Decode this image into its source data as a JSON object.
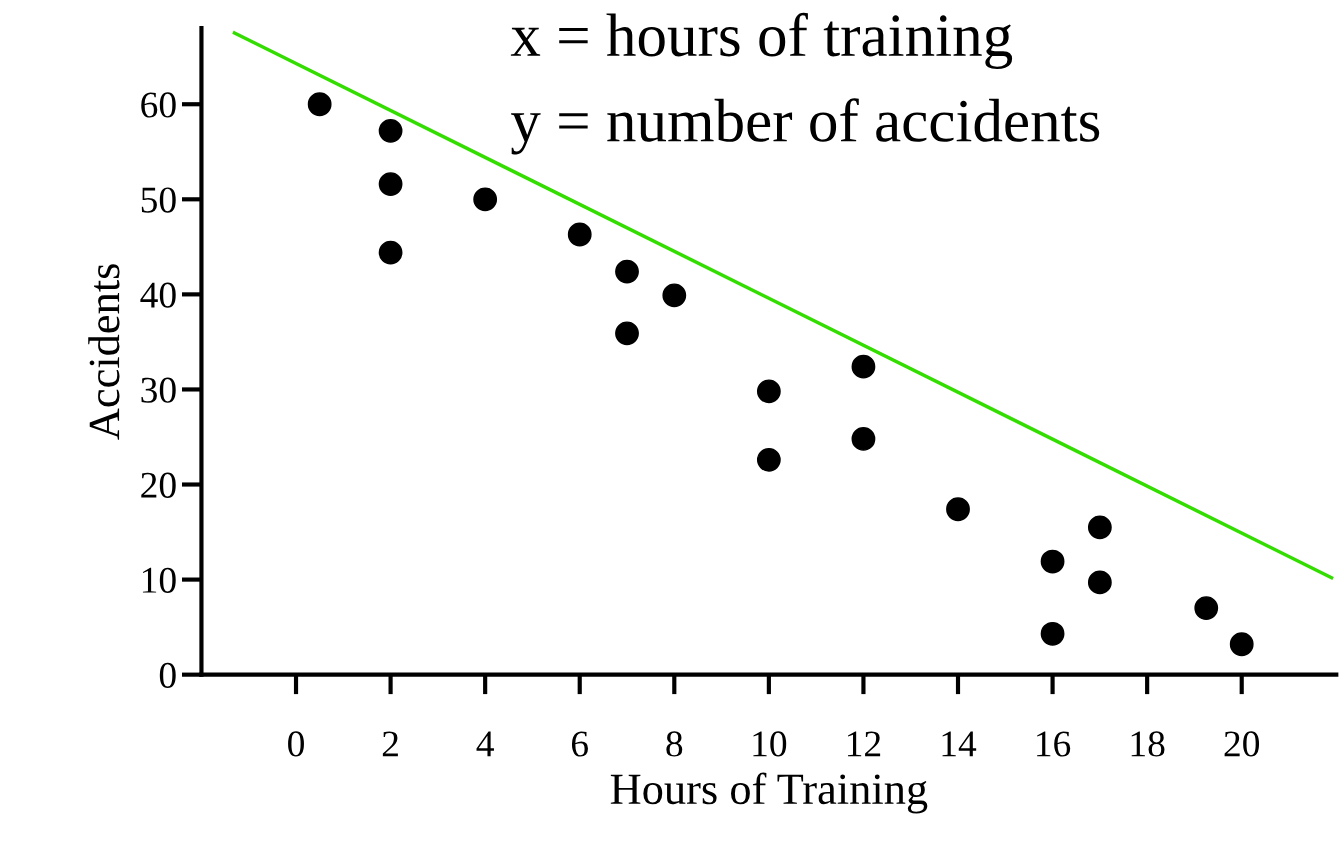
{
  "chart_data": {
    "type": "scatter",
    "xlabel": "Hours of Training",
    "ylabel": "Accidents",
    "annotations": [
      "x = hours of training",
      "y = number of accidents"
    ],
    "xlim": [
      -2,
      22
    ],
    "ylim": [
      0,
      68
    ],
    "xticks": [
      0,
      2,
      4,
      6,
      8,
      10,
      12,
      14,
      16,
      18,
      20
    ],
    "yticks": [
      0,
      10,
      20,
      30,
      40,
      50,
      60
    ],
    "grid": false,
    "legend": false,
    "series": [
      {
        "marker": "circle",
        "color": "#000000",
        "x": [
          0.5,
          2,
          2,
          2,
          4,
          6,
          7,
          7,
          8,
          10,
          10,
          12,
          12,
          14,
          16,
          16,
          17,
          17,
          19.25,
          20
        ],
        "values": [
          60,
          57.2,
          51.6,
          44.4,
          50,
          46.3,
          42.4,
          35.9,
          39.9,
          29.8,
          22.6,
          32.4,
          24.8,
          17.4,
          11.9,
          4.3,
          15.5,
          9.7,
          7.0,
          3.2
        ]
      },
      {
        "type": "line",
        "color": "#33dd00",
        "x": [
          -1.3,
          21.9
        ],
        "values": [
          67.5,
          10.2
        ]
      }
    ]
  }
}
